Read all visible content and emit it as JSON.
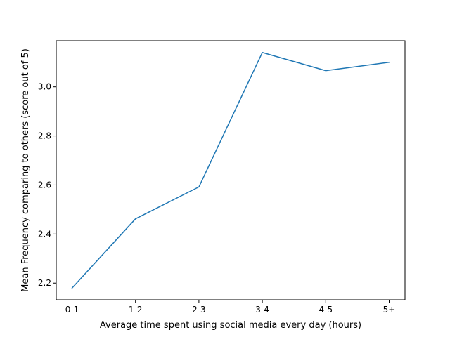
{
  "chart_data": {
    "type": "line",
    "title": "",
    "xlabel": "Average time spent using social media every day (hours)",
    "ylabel": "Mean Frequency comparing to others (score out of 5)",
    "categories": [
      "0-1",
      "1-2",
      "2-3",
      "3-4",
      "4-5",
      "5+"
    ],
    "series": [
      {
        "values": [
          2.18,
          2.462,
          2.592,
          3.14,
          3.066,
          3.1
        ]
      }
    ],
    "yticks": [
      2.2,
      2.4,
      2.6,
      2.8,
      3.0
    ],
    "ytick_labels": [
      "2.2",
      "2.4",
      "2.6",
      "2.8",
      "3.0"
    ],
    "ylim": [
      2.132,
      3.188
    ],
    "grid": false,
    "line_color": "#1f77b4"
  }
}
